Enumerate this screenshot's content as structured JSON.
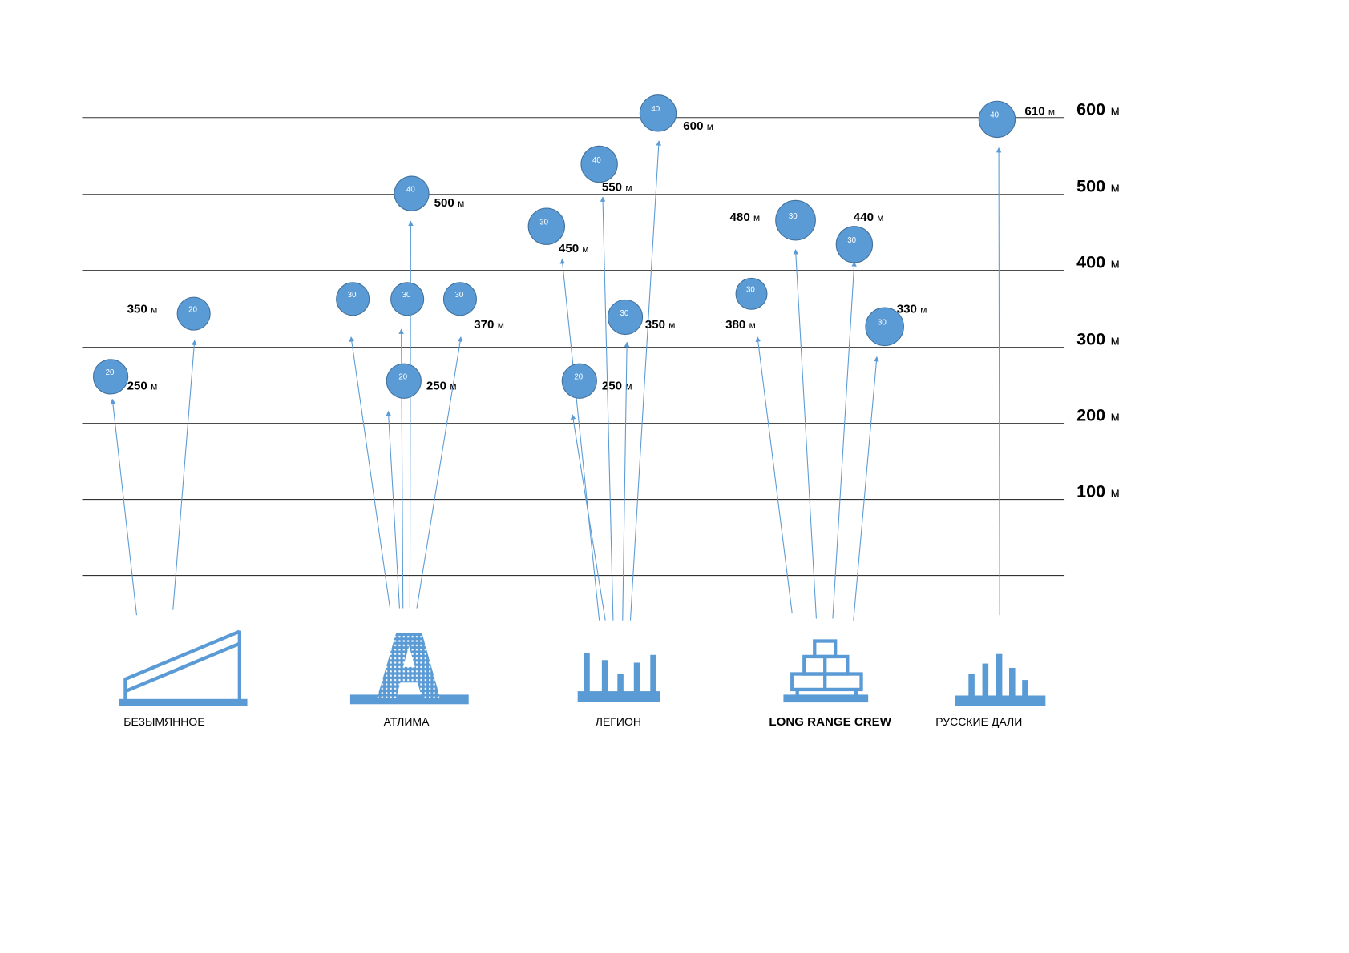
{
  "axis": {
    "ticks": [
      600,
      500,
      400,
      300,
      200,
      100
    ],
    "unit": "м"
  },
  "groups": [
    {
      "name": "БЕЗЫМЯННОЕ",
      "balloons": [
        {
          "size": 20,
          "height": 250
        },
        {
          "size": 20,
          "height": 350
        }
      ]
    },
    {
      "name": "АТЛИМА",
      "balloons": [
        {
          "size": 30
        },
        {
          "size": 30
        },
        {
          "size": 30,
          "height": 370
        },
        {
          "size": 20,
          "height": 250
        },
        {
          "size": 40,
          "height": 500
        }
      ]
    },
    {
      "name": "ЛЕГИОН",
      "balloons": [
        {
          "size": 30,
          "height": 450
        },
        {
          "size": 20,
          "height": 250
        },
        {
          "size": 40,
          "height": 550
        },
        {
          "size": 30,
          "height": 350
        },
        {
          "size": 40,
          "height": 600
        }
      ]
    },
    {
      "name": "LONG RANGE CREW",
      "balloons": [
        {
          "size": 30,
          "height": 380
        },
        {
          "size": 30,
          "height": 480
        },
        {
          "size": 30,
          "height": 440
        },
        {
          "size": 30,
          "height": 330
        }
      ]
    },
    {
      "name": "РУССКИЕ ДАЛИ",
      "balloons": [
        {
          "size": 40,
          "height": 610
        }
      ]
    }
  ]
}
